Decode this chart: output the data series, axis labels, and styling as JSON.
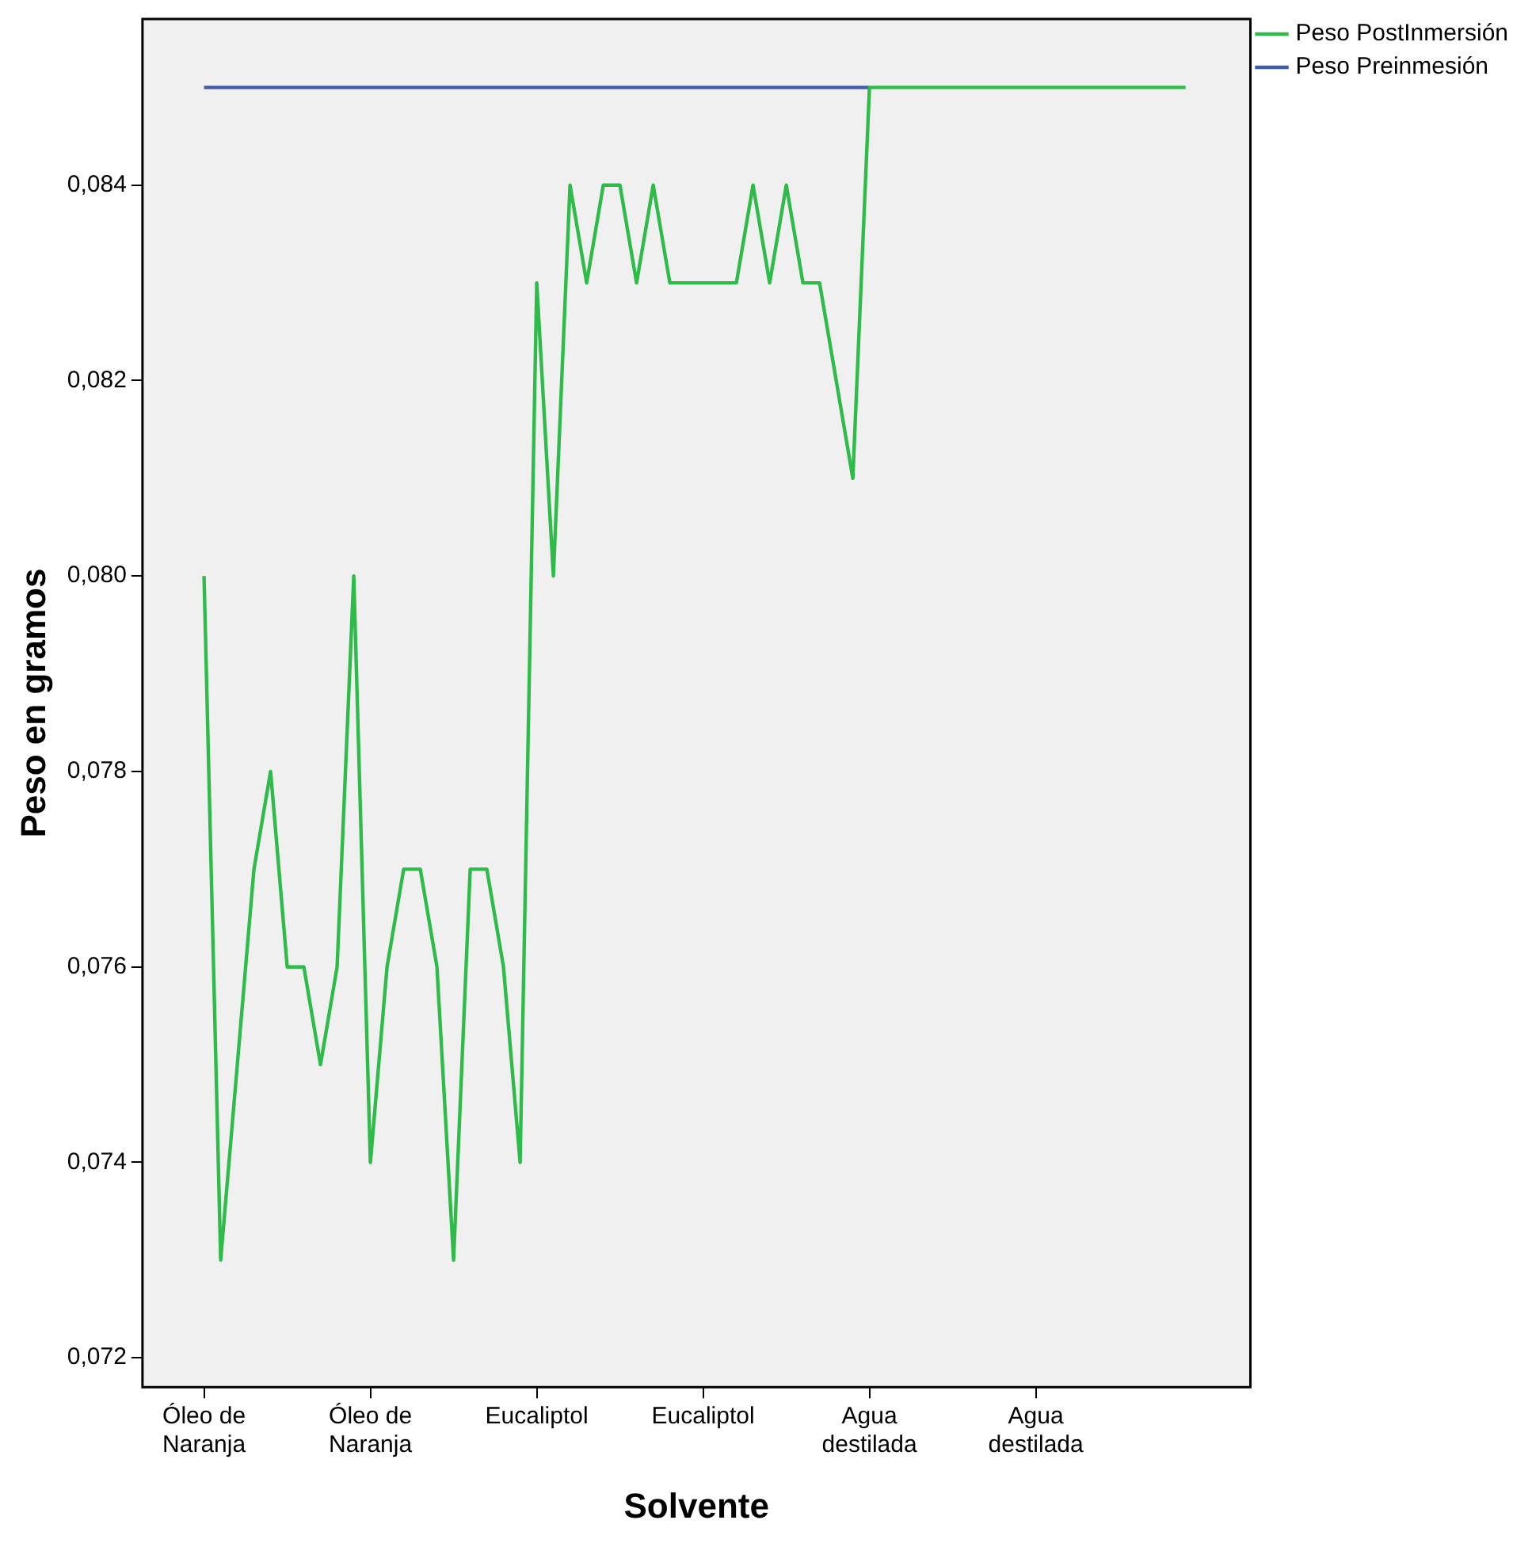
{
  "chart_data": {
    "type": "line",
    "xlabel": "Solvente",
    "ylabel": "Peso en gramos",
    "categories": [
      "Óleo de Naranja",
      null,
      null,
      null,
      null,
      null,
      null,
      null,
      null,
      null,
      "Óleo de Naranja",
      null,
      null,
      null,
      null,
      null,
      null,
      null,
      null,
      null,
      "Eucaliptol",
      null,
      null,
      null,
      null,
      null,
      null,
      null,
      null,
      null,
      "Eucaliptol",
      null,
      null,
      null,
      null,
      null,
      null,
      null,
      null,
      null,
      "Agua destilada",
      null,
      null,
      null,
      null,
      null,
      null,
      null,
      null,
      null,
      "Agua destilada",
      null,
      null,
      null,
      null,
      null,
      null,
      null,
      null,
      null
    ],
    "series": [
      {
        "name": "Peso Preinmesión",
        "color": "#3f5ba9",
        "values": [
          0.085,
          0.085,
          0.085,
          0.085,
          0.085,
          0.085,
          0.085,
          0.085,
          0.085,
          0.085,
          0.085,
          0.085,
          0.085,
          0.085,
          0.085,
          0.085,
          0.085,
          0.085,
          0.085,
          0.085,
          0.085,
          0.085,
          0.085,
          0.085,
          0.085,
          0.085,
          0.085,
          0.085,
          0.085,
          0.085,
          0.085,
          0.085,
          0.085,
          0.085,
          0.085,
          0.085,
          0.085,
          0.085,
          0.085,
          0.085,
          0.085,
          null,
          null,
          null,
          null,
          null,
          null,
          null,
          null,
          null,
          null,
          null,
          null,
          null,
          null,
          null,
          null,
          null,
          null,
          null
        ]
      },
      {
        "name": "Peso PostInmersión",
        "color": "#2fbb49",
        "values": [
          0.08,
          0.073,
          0.075,
          0.077,
          0.078,
          0.076,
          0.076,
          0.075,
          0.076,
          0.08,
          0.074,
          0.076,
          0.077,
          0.077,
          0.076,
          0.073,
          0.077,
          0.077,
          0.076,
          0.074,
          0.083,
          0.08,
          0.084,
          0.083,
          0.084,
          0.084,
          0.083,
          0.084,
          0.083,
          0.083,
          0.083,
          0.083,
          0.083,
          0.084,
          0.083,
          0.084,
          0.083,
          0.083,
          0.082,
          0.081,
          0.085,
          0.085,
          0.085,
          0.085,
          0.085,
          0.085,
          0.085,
          0.085,
          0.085,
          0.085,
          0.085,
          0.085,
          0.085,
          0.085,
          0.085,
          0.085,
          0.085,
          0.085,
          0.085,
          0.085
        ]
      }
    ],
    "ylim": [
      0.0717,
      0.0857
    ],
    "yticks": [
      {
        "value": 0.072,
        "label": "0,072"
      },
      {
        "value": 0.074,
        "label": "0,074"
      },
      {
        "value": 0.076,
        "label": "0,076"
      },
      {
        "value": 0.078,
        "label": "0,078"
      },
      {
        "value": 0.08,
        "label": "0,080"
      },
      {
        "value": 0.082,
        "label": "0,082"
      },
      {
        "value": 0.084,
        "label": "0,084"
      }
    ],
    "grid": false,
    "legend": "top right",
    "marker": "none",
    "line_style": "solid"
  }
}
